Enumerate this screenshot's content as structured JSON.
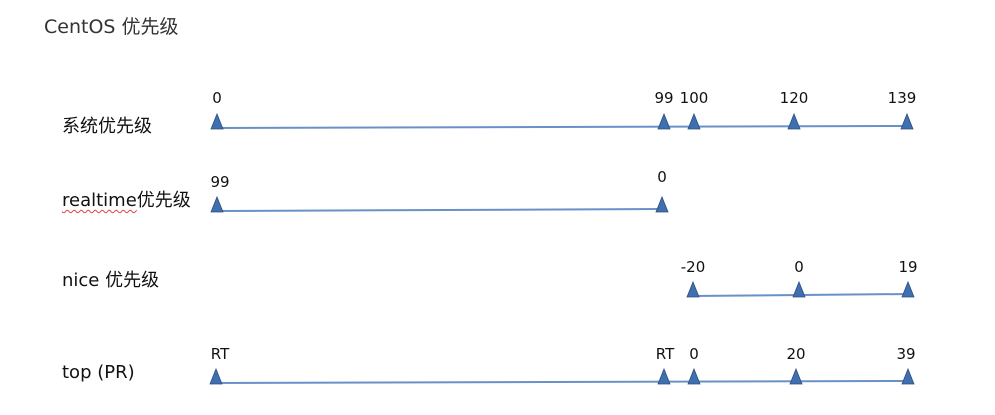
{
  "title": "CentOS 优先级",
  "colors": {
    "line": "#6a90c8",
    "marker": "#3f6fae",
    "marker_stroke": "#2c4f80"
  },
  "rows": [
    {
      "label": "系统优先级",
      "ticks": [
        {
          "text": "0",
          "value": 0
        },
        {
          "text": "99",
          "value": 99
        },
        {
          "text": "100",
          "value": 100
        },
        {
          "text": "120",
          "value": 120
        },
        {
          "text": "139",
          "value": 139
        }
      ]
    },
    {
      "label_word": "realtime",
      "label_suffix": "优先级",
      "ticks": [
        {
          "text": "99",
          "value": 99
        },
        {
          "text": "0",
          "value": 0
        }
      ]
    },
    {
      "label": "nice 优先级",
      "ticks": [
        {
          "text": "-20",
          "value": -20
        },
        {
          "text": "0",
          "value": 0
        },
        {
          "text": "19",
          "value": 19
        }
      ]
    },
    {
      "label": "top (PR)",
      "ticks": [
        {
          "text": "RT",
          "value": "RT"
        },
        {
          "text": "RT",
          "value": "RT"
        },
        {
          "text": "0",
          "value": 0
        },
        {
          "text": "20",
          "value": 20
        },
        {
          "text": "39",
          "value": 39
        }
      ]
    }
  ]
}
